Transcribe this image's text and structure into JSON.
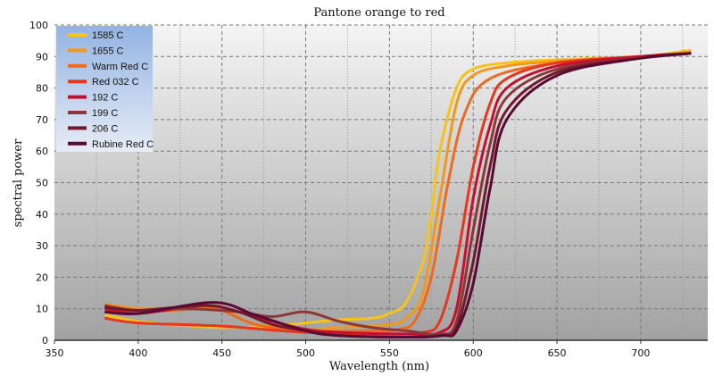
{
  "chart_data": {
    "type": "line",
    "title": "Pantone orange to red",
    "xlabel": "Wavelength (nm)",
    "ylabel": "spectral power",
    "xlim": [
      350,
      740
    ],
    "ylim": [
      0,
      100
    ],
    "xticks": [
      350,
      400,
      450,
      500,
      550,
      600,
      650,
      700
    ],
    "yticks": [
      0,
      10,
      20,
      30,
      40,
      50,
      60,
      70,
      80,
      90,
      100
    ],
    "grid": true,
    "legend_position": "top-left",
    "series": [
      {
        "name": "1585 C",
        "color": "#f6c21c",
        "points": [
          [
            380,
            8
          ],
          [
            400,
            6
          ],
          [
            420,
            5
          ],
          [
            450,
            4
          ],
          [
            480,
            4.5
          ],
          [
            500,
            5.5
          ],
          [
            520,
            6.5
          ],
          [
            540,
            7
          ],
          [
            550,
            8.5
          ],
          [
            560,
            12
          ],
          [
            570,
            25
          ],
          [
            575,
            40
          ],
          [
            580,
            60
          ],
          [
            590,
            80
          ],
          [
            600,
            86
          ],
          [
            620,
            88
          ],
          [
            650,
            89
          ],
          [
            700,
            90
          ],
          [
            730,
            92
          ]
        ]
      },
      {
        "name": "1655 C",
        "color": "#f2981c",
        "points": [
          [
            380,
            11.5
          ],
          [
            400,
            10
          ],
          [
            430,
            10
          ],
          [
            450,
            9.5
          ],
          [
            470,
            5
          ],
          [
            500,
            3.5
          ],
          [
            520,
            4
          ],
          [
            550,
            5
          ],
          [
            560,
            7
          ],
          [
            570,
            15
          ],
          [
            580,
            45
          ],
          [
            590,
            75
          ],
          [
            600,
            84
          ],
          [
            620,
            87
          ],
          [
            650,
            88.5
          ],
          [
            700,
            90
          ],
          [
            730,
            91.5
          ]
        ]
      },
      {
        "name": "Warm Red C",
        "color": "#ee6a1e",
        "points": [
          [
            380,
            9
          ],
          [
            400,
            9
          ],
          [
            440,
            10
          ],
          [
            450,
            9.5
          ],
          [
            470,
            5
          ],
          [
            500,
            3
          ],
          [
            540,
            3
          ],
          [
            555,
            3.5
          ],
          [
            565,
            6
          ],
          [
            575,
            20
          ],
          [
            585,
            50
          ],
          [
            595,
            72
          ],
          [
            610,
            83
          ],
          [
            650,
            88
          ],
          [
            700,
            90
          ],
          [
            730,
            91
          ]
        ]
      },
      {
        "name": "Red 032 C",
        "color": "#e5381f",
        "points": [
          [
            380,
            7
          ],
          [
            400,
            5.5
          ],
          [
            450,
            4.5
          ],
          [
            500,
            2.5
          ],
          [
            550,
            2
          ],
          [
            570,
            2.5
          ],
          [
            580,
            6
          ],
          [
            590,
            25
          ],
          [
            600,
            55
          ],
          [
            610,
            75
          ],
          [
            620,
            83
          ],
          [
            650,
            88
          ],
          [
            700,
            90
          ],
          [
            730,
            91
          ]
        ]
      },
      {
        "name": "192 C",
        "color": "#c4102e",
        "points": [
          [
            380,
            10
          ],
          [
            400,
            8.5
          ],
          [
            440,
            11
          ],
          [
            460,
            9
          ],
          [
            480,
            6
          ],
          [
            500,
            3.5
          ],
          [
            520,
            2.5
          ],
          [
            560,
            2
          ],
          [
            580,
            2.5
          ],
          [
            590,
            10
          ],
          [
            600,
            45
          ],
          [
            610,
            68
          ],
          [
            620,
            80
          ],
          [
            650,
            87
          ],
          [
            700,
            90
          ],
          [
            730,
            91
          ]
        ]
      },
      {
        "name": "199 C",
        "color": "#8c3838",
        "points": [
          [
            380,
            11
          ],
          [
            400,
            9.5
          ],
          [
            430,
            10
          ],
          [
            460,
            9
          ],
          [
            480,
            7.5
          ],
          [
            500,
            9
          ],
          [
            520,
            6
          ],
          [
            540,
            4
          ],
          [
            560,
            3
          ],
          [
            580,
            2
          ],
          [
            590,
            6
          ],
          [
            600,
            35
          ],
          [
            610,
            62
          ],
          [
            620,
            77
          ],
          [
            650,
            86
          ],
          [
            700,
            89.5
          ],
          [
            730,
            91
          ]
        ]
      },
      {
        "name": "206 C",
        "color": "#74182c",
        "points": [
          [
            380,
            10.5
          ],
          [
            400,
            9.5
          ],
          [
            440,
            11
          ],
          [
            460,
            9
          ],
          [
            480,
            5
          ],
          [
            500,
            3
          ],
          [
            520,
            1.5
          ],
          [
            560,
            1
          ],
          [
            580,
            1.5
          ],
          [
            590,
            4
          ],
          [
            600,
            25
          ],
          [
            610,
            55
          ],
          [
            620,
            73
          ],
          [
            650,
            85
          ],
          [
            700,
            89.5
          ],
          [
            730,
            91
          ]
        ]
      },
      {
        "name": "Rubine Red C",
        "color": "#560a34",
        "points": [
          [
            380,
            9
          ],
          [
            400,
            8.5
          ],
          [
            445,
            12
          ],
          [
            470,
            8
          ],
          [
            500,
            3
          ],
          [
            520,
            1.5
          ],
          [
            560,
            1
          ],
          [
            582,
            1.5
          ],
          [
            590,
            3
          ],
          [
            600,
            18
          ],
          [
            610,
            48
          ],
          [
            620,
            70
          ],
          [
            650,
            84
          ],
          [
            700,
            89.5
          ],
          [
            730,
            91
          ]
        ]
      }
    ]
  }
}
